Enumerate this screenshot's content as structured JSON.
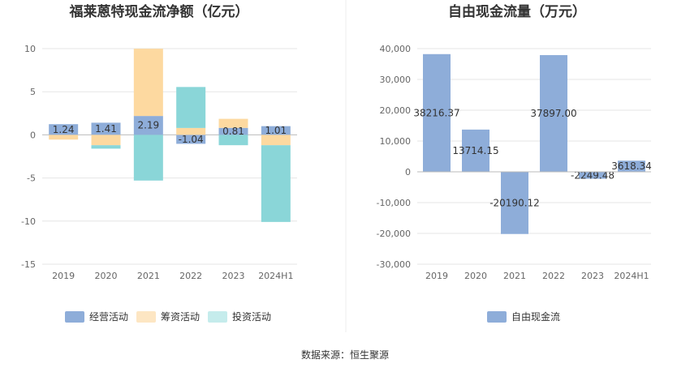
{
  "source_text": "数据来源：恒生聚源",
  "colors": {
    "operating": "#8eadd9",
    "financing": "#fdd9a0",
    "investing": "#8ad6d8",
    "fcf": "#8eadd9",
    "operating_legend": "#8eadd9",
    "financing_legend": "#fde6c3",
    "investing_legend": "#c5ecec"
  },
  "chart_data": [
    {
      "type": "bar",
      "stacked": true,
      "title": "福莱蒽特现金流净额（亿元）",
      "categories": [
        "2019",
        "2020",
        "2021",
        "2022",
        "2023",
        "2024H1"
      ],
      "ylim": [
        -15,
        10
      ],
      "yticks": [
        "10",
        "5",
        "0",
        "-5",
        "-10",
        "-15"
      ],
      "ytick_values": [
        10,
        5,
        0,
        -5,
        -10,
        -15
      ],
      "grid": true,
      "legend_position": "bottom",
      "series": [
        {
          "name": "经营活动",
          "key": "operating",
          "values": [
            1.24,
            1.41,
            2.19,
            -1.04,
            0.81,
            1.01
          ],
          "labels": [
            "1.24",
            "1.41",
            "2.19",
            "-1.04",
            "0.81",
            "1.01"
          ]
        },
        {
          "name": "筹资活动",
          "key": "financing",
          "values": [
            -0.55,
            -1.2,
            7.8,
            0.8,
            1.05,
            -1.2
          ]
        },
        {
          "name": "投资活动",
          "key": "investing",
          "values": [
            0.0,
            -0.4,
            -5.3,
            4.75,
            -1.2,
            -8.9
          ]
        }
      ]
    },
    {
      "type": "bar",
      "title": "自由现金流量（万元）",
      "categories": [
        "2019",
        "2020",
        "2021",
        "2022",
        "2023",
        "2024H1"
      ],
      "ylim": [
        -30000,
        40000
      ],
      "yticks": [
        "40,000",
        "30,000",
        "20,000",
        "10,000",
        "0",
        "-10,000",
        "-20,000",
        "-30,000"
      ],
      "ytick_values": [
        40000,
        30000,
        20000,
        10000,
        0,
        -10000,
        -20000,
        -30000
      ],
      "grid": true,
      "legend_position": "bottom",
      "series": [
        {
          "name": "自由现金流",
          "key": "fcf",
          "values": [
            38216.37,
            13714.15,
            -20190.12,
            37897.0,
            -2249.48,
            3618.34
          ],
          "labels": [
            "38216.37",
            "13714.15",
            "-20190.12",
            "37897.00",
            "-2249.48",
            "3618.34"
          ]
        }
      ]
    }
  ]
}
